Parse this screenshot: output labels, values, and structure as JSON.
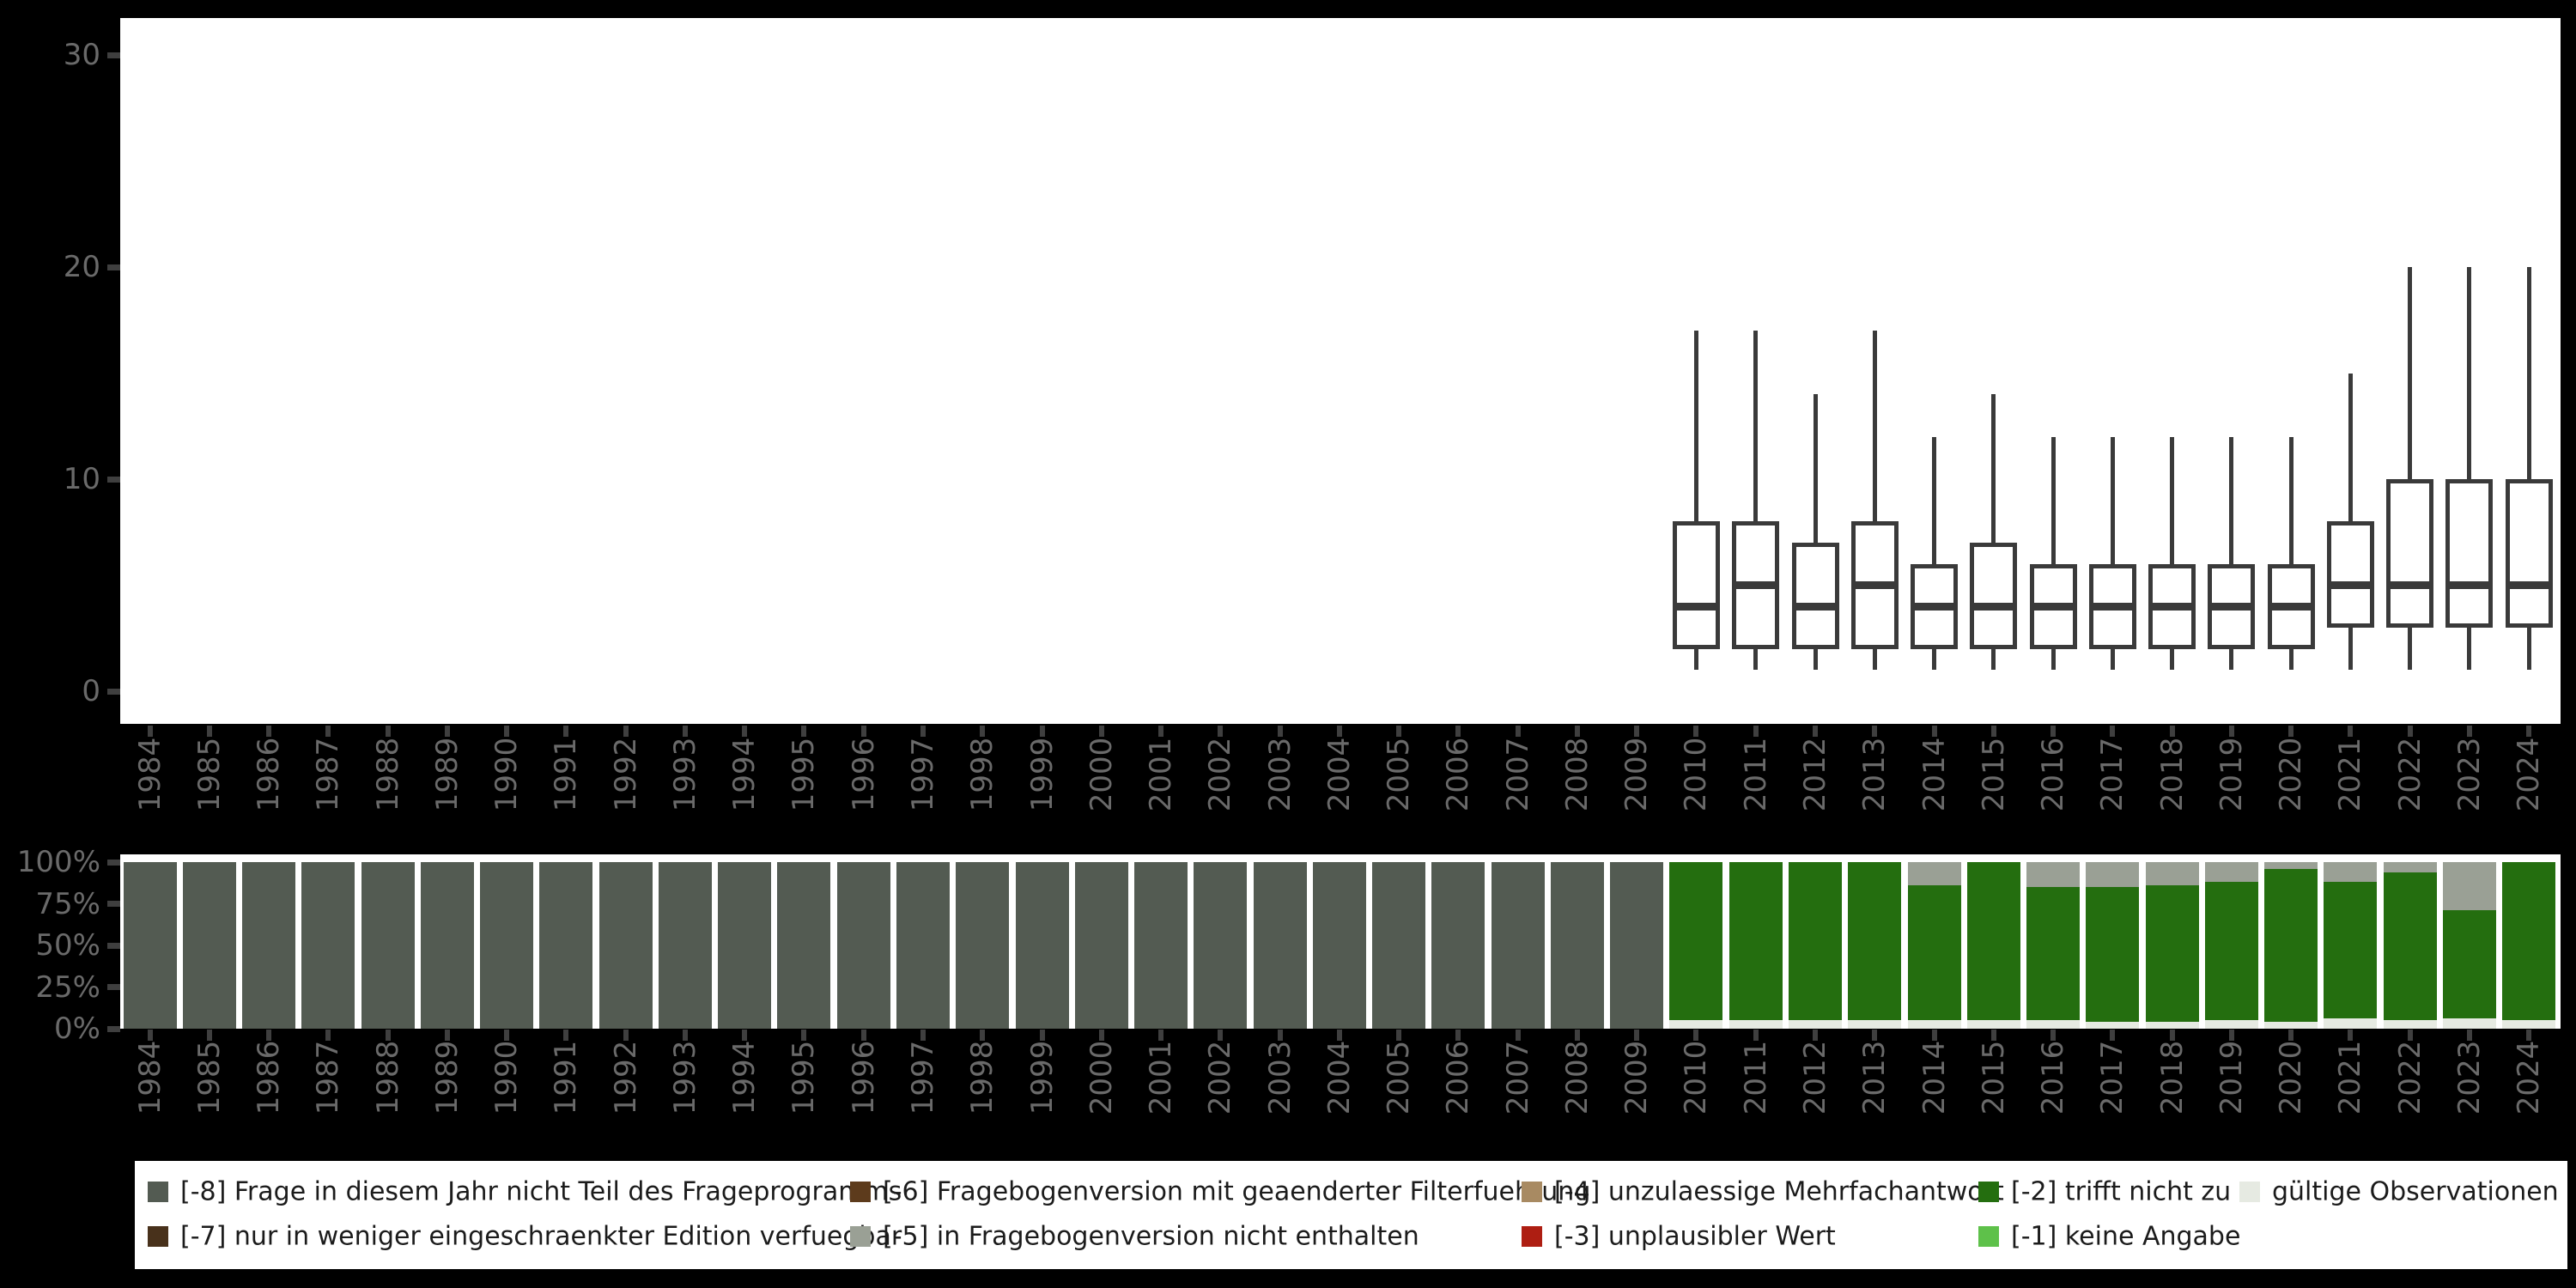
{
  "page": {
    "background": "#000000",
    "panel_color": "#ffffff",
    "axis_label_color": "#6a6a6a",
    "tick_color": "#3f3f3f",
    "box_stroke_color": "#3a3a3a"
  },
  "years": [
    1984,
    1985,
    1986,
    1987,
    1988,
    1989,
    1990,
    1991,
    1992,
    1993,
    1994,
    1995,
    1996,
    1997,
    1998,
    1999,
    2000,
    2001,
    2002,
    2003,
    2004,
    2005,
    2006,
    2007,
    2008,
    2009,
    2010,
    2011,
    2012,
    2013,
    2014,
    2015,
    2016,
    2017,
    2018,
    2019,
    2020,
    2021,
    2022,
    2023,
    2024
  ],
  "chart_data": [
    {
      "type": "boxplot",
      "title": "",
      "xlabel": "",
      "ylabel": "",
      "ylim": [
        0,
        30
      ],
      "yticks": [
        0,
        10,
        20,
        30
      ],
      "grid": false,
      "categories": [
        1984,
        1985,
        1986,
        1987,
        1988,
        1989,
        1990,
        1991,
        1992,
        1993,
        1994,
        1995,
        1996,
        1997,
        1998,
        1999,
        2000,
        2001,
        2002,
        2003,
        2004,
        2005,
        2006,
        2007,
        2008,
        2009,
        2010,
        2011,
        2012,
        2013,
        2014,
        2015,
        2016,
        2017,
        2018,
        2019,
        2020,
        2021,
        2022,
        2023,
        2024
      ],
      "boxes": [
        {
          "year": 2010,
          "min": 1,
          "q1": 2,
          "median": 4,
          "q3": 8,
          "max": 17
        },
        {
          "year": 2011,
          "min": 1,
          "q1": 2,
          "median": 5,
          "q3": 8,
          "max": 17
        },
        {
          "year": 2012,
          "min": 1,
          "q1": 2,
          "median": 4,
          "q3": 7,
          "max": 14
        },
        {
          "year": 2013,
          "min": 1,
          "q1": 2,
          "median": 5,
          "q3": 8,
          "max": 17
        },
        {
          "year": 2014,
          "min": 1,
          "q1": 2,
          "median": 4,
          "q3": 6,
          "max": 12
        },
        {
          "year": 2015,
          "min": 1,
          "q1": 2,
          "median": 4,
          "q3": 7,
          "max": 14
        },
        {
          "year": 2016,
          "min": 1,
          "q1": 2,
          "median": 4,
          "q3": 6,
          "max": 12
        },
        {
          "year": 2017,
          "min": 1,
          "q1": 2,
          "median": 4,
          "q3": 6,
          "max": 12
        },
        {
          "year": 2018,
          "min": 1,
          "q1": 2,
          "median": 4,
          "q3": 6,
          "max": 12
        },
        {
          "year": 2019,
          "min": 1,
          "q1": 2,
          "median": 4,
          "q3": 6,
          "max": 12
        },
        {
          "year": 2020,
          "min": 1,
          "q1": 2,
          "median": 4,
          "q3": 6,
          "max": 12
        },
        {
          "year": 2021,
          "min": 1,
          "q1": 3,
          "median": 5,
          "q3": 8,
          "max": 15
        },
        {
          "year": 2022,
          "min": 1,
          "q1": 3,
          "median": 5,
          "q3": 10,
          "max": 20
        },
        {
          "year": 2023,
          "min": 1,
          "q1": 3,
          "median": 5,
          "q3": 10,
          "max": 20
        },
        {
          "year": 2024,
          "min": 1,
          "q1": 3,
          "median": 5,
          "q3": 10,
          "max": 20
        }
      ]
    },
    {
      "type": "stacked_bar_percent",
      "title": "",
      "xlabel": "",
      "ylabel": "",
      "ylim": [
        0,
        100
      ],
      "ytick_labels": [
        "100%",
        "75%",
        "50%",
        "25%",
        "0%"
      ],
      "ytick_values": [
        100,
        75,
        50,
        25,
        0
      ],
      "grid": false,
      "categories": [
        1984,
        1985,
        1986,
        1987,
        1988,
        1989,
        1990,
        1991,
        1992,
        1993,
        1994,
        1995,
        1996,
        1997,
        1998,
        1999,
        2000,
        2001,
        2002,
        2003,
        2004,
        2005,
        2006,
        2007,
        2008,
        2009,
        2010,
        2011,
        2012,
        2013,
        2014,
        2015,
        2016,
        2017,
        2018,
        2019,
        2020,
        2021,
        2022,
        2023,
        2024
      ],
      "bars": [
        {
          "year": 1984,
          "segments": [
            {
              "key": "m8",
              "pct": 100
            }
          ]
        },
        {
          "year": 1985,
          "segments": [
            {
              "key": "m8",
              "pct": 100
            }
          ]
        },
        {
          "year": 1986,
          "segments": [
            {
              "key": "m8",
              "pct": 100
            }
          ]
        },
        {
          "year": 1987,
          "segments": [
            {
              "key": "m8",
              "pct": 100
            }
          ]
        },
        {
          "year": 1988,
          "segments": [
            {
              "key": "m8",
              "pct": 100
            }
          ]
        },
        {
          "year": 1989,
          "segments": [
            {
              "key": "m8",
              "pct": 100
            }
          ]
        },
        {
          "year": 1990,
          "segments": [
            {
              "key": "m8",
              "pct": 100
            }
          ]
        },
        {
          "year": 1991,
          "segments": [
            {
              "key": "m8",
              "pct": 100
            }
          ]
        },
        {
          "year": 1992,
          "segments": [
            {
              "key": "m8",
              "pct": 100
            }
          ]
        },
        {
          "year": 1993,
          "segments": [
            {
              "key": "m8",
              "pct": 100
            }
          ]
        },
        {
          "year": 1994,
          "segments": [
            {
              "key": "m8",
              "pct": 100
            }
          ]
        },
        {
          "year": 1995,
          "segments": [
            {
              "key": "m8",
              "pct": 100
            }
          ]
        },
        {
          "year": 1996,
          "segments": [
            {
              "key": "m8",
              "pct": 100
            }
          ]
        },
        {
          "year": 1997,
          "segments": [
            {
              "key": "m8",
              "pct": 100
            }
          ]
        },
        {
          "year": 1998,
          "segments": [
            {
              "key": "m8",
              "pct": 100
            }
          ]
        },
        {
          "year": 1999,
          "segments": [
            {
              "key": "m8",
              "pct": 100
            }
          ]
        },
        {
          "year": 2000,
          "segments": [
            {
              "key": "m8",
              "pct": 100
            }
          ]
        },
        {
          "year": 2001,
          "segments": [
            {
              "key": "m8",
              "pct": 100
            }
          ]
        },
        {
          "year": 2002,
          "segments": [
            {
              "key": "m8",
              "pct": 100
            }
          ]
        },
        {
          "year": 2003,
          "segments": [
            {
              "key": "m8",
              "pct": 100
            }
          ]
        },
        {
          "year": 2004,
          "segments": [
            {
              "key": "m8",
              "pct": 100
            }
          ]
        },
        {
          "year": 2005,
          "segments": [
            {
              "key": "m8",
              "pct": 100
            }
          ]
        },
        {
          "year": 2006,
          "segments": [
            {
              "key": "m8",
              "pct": 100
            }
          ]
        },
        {
          "year": 2007,
          "segments": [
            {
              "key": "m8",
              "pct": 100
            }
          ]
        },
        {
          "year": 2008,
          "segments": [
            {
              "key": "m8",
              "pct": 100
            }
          ]
        },
        {
          "year": 2009,
          "segments": [
            {
              "key": "m8",
              "pct": 100
            }
          ]
        },
        {
          "year": 2010,
          "segments": [
            {
              "key": "m2",
              "pct": 95
            },
            {
              "key": "valid",
              "pct": 5
            }
          ]
        },
        {
          "year": 2011,
          "segments": [
            {
              "key": "m2",
              "pct": 95
            },
            {
              "key": "valid",
              "pct": 5
            }
          ]
        },
        {
          "year": 2012,
          "segments": [
            {
              "key": "m2",
              "pct": 95
            },
            {
              "key": "valid",
              "pct": 5
            }
          ]
        },
        {
          "year": 2013,
          "segments": [
            {
              "key": "m2",
              "pct": 95
            },
            {
              "key": "valid",
              "pct": 5
            }
          ]
        },
        {
          "year": 2014,
          "segments": [
            {
              "key": "m5",
              "pct": 14
            },
            {
              "key": "m2",
              "pct": 81
            },
            {
              "key": "valid",
              "pct": 5
            }
          ]
        },
        {
          "year": 2015,
          "segments": [
            {
              "key": "m2",
              "pct": 95
            },
            {
              "key": "valid",
              "pct": 5
            }
          ]
        },
        {
          "year": 2016,
          "segments": [
            {
              "key": "m5",
              "pct": 15
            },
            {
              "key": "m2",
              "pct": 80
            },
            {
              "key": "valid",
              "pct": 5
            }
          ]
        },
        {
          "year": 2017,
          "segments": [
            {
              "key": "m5",
              "pct": 15
            },
            {
              "key": "m2",
              "pct": 81
            },
            {
              "key": "valid",
              "pct": 4
            }
          ]
        },
        {
          "year": 2018,
          "segments": [
            {
              "key": "m5",
              "pct": 14
            },
            {
              "key": "m2",
              "pct": 82
            },
            {
              "key": "valid",
              "pct": 4
            }
          ]
        },
        {
          "year": 2019,
          "segments": [
            {
              "key": "m5",
              "pct": 12
            },
            {
              "key": "m2",
              "pct": 83
            },
            {
              "key": "valid",
              "pct": 5
            }
          ]
        },
        {
          "year": 2020,
          "segments": [
            {
              "key": "m5",
              "pct": 4
            },
            {
              "key": "m2",
              "pct": 92
            },
            {
              "key": "valid",
              "pct": 4
            }
          ]
        },
        {
          "year": 2021,
          "segments": [
            {
              "key": "m5",
              "pct": 12
            },
            {
              "key": "m2",
              "pct": 82
            },
            {
              "key": "valid",
              "pct": 6
            }
          ]
        },
        {
          "year": 2022,
          "segments": [
            {
              "key": "m5",
              "pct": 6
            },
            {
              "key": "m2",
              "pct": 89
            },
            {
              "key": "valid",
              "pct": 5
            }
          ]
        },
        {
          "year": 2023,
          "segments": [
            {
              "key": "m5",
              "pct": 29
            },
            {
              "key": "m2",
              "pct": 65
            },
            {
              "key": "valid",
              "pct": 6
            }
          ]
        },
        {
          "year": 2024,
          "segments": [
            {
              "key": "m2",
              "pct": 95
            },
            {
              "key": "valid",
              "pct": 5
            }
          ]
        }
      ]
    }
  ],
  "legend": {
    "position": "bottom",
    "items": [
      {
        "key": "m8",
        "label": "[-8] Frage in diesem Jahr nicht Teil des Frageprogramms",
        "color": "#535b52",
        "col": 0,
        "row": 0
      },
      {
        "key": "m7",
        "label": "[-7] nur in weniger eingeschraenkter Edition verfuegbar",
        "color": "#48311b",
        "col": 0,
        "row": 1
      },
      {
        "key": "m6",
        "label": "[-6] Fragebogenversion mit geaenderter Filterfuehrung",
        "color": "#5d3b1c",
        "col": 1,
        "row": 0
      },
      {
        "key": "m5",
        "label": "[-5] in Fragebogenversion nicht enthalten",
        "color": "#9aa095",
        "col": 1,
        "row": 1
      },
      {
        "key": "m4",
        "label": "[-4] unzulaessige Mehrfachantwort",
        "color": "#a88a62",
        "col": 2,
        "row": 0
      },
      {
        "key": "m3",
        "label": "[-3] unplausibler Wert",
        "color": "#ae1e12",
        "col": 2,
        "row": 1
      },
      {
        "key": "m2",
        "label": "[-2] trifft nicht zu",
        "color": "#246e0f",
        "col": 3,
        "row": 0
      },
      {
        "key": "m1",
        "label": "[-1] keine Angabe",
        "color": "#5ec14a",
        "col": 3,
        "row": 1
      },
      {
        "key": "valid",
        "label": "gültige Observationen",
        "color": "#e6eae2",
        "col": 4,
        "row": 0
      }
    ]
  }
}
